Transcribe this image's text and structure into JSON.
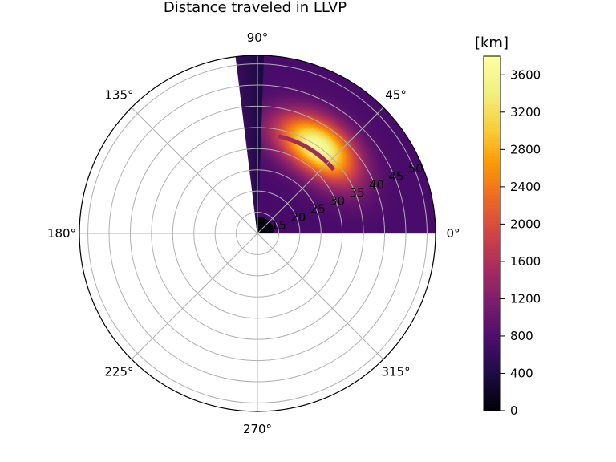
{
  "chart_data": {
    "type": "heatmap",
    "projection": "polar",
    "title": "Distance traveled in LLVP",
    "theta_range_deg": [
      0,
      97
    ],
    "theta_tick_labels": [
      "0°",
      "45°",
      "90°",
      "135°",
      "180°",
      "225°",
      "270°",
      "315°"
    ],
    "theta_tick_values_deg": [
      0,
      45,
      90,
      135,
      180,
      225,
      270,
      315
    ],
    "r_range": [
      10,
      52
    ],
    "r_tick_values": [
      15,
      20,
      25,
      30,
      35,
      40,
      45,
      50
    ],
    "r_tick_labels": [
      "15",
      "20",
      "25",
      "30",
      "35",
      "40",
      "45",
      "50"
    ],
    "r_label_angle_deg": 22.5,
    "grid": true,
    "colormap": "inferno",
    "colorbar": {
      "label": "[km]",
      "vmin": 0,
      "vmax": 3800,
      "ticks": [
        0,
        400,
        800,
        1200,
        1600,
        2000,
        2400,
        2800,
        3200,
        3600
      ],
      "tick_labels": [
        "0",
        "400",
        "800",
        "1200",
        "1600",
        "2000",
        "2400",
        "2800",
        "3200",
        "3600"
      ]
    },
    "field_description_values": {
      "background_km": 750,
      "peak_km": 3700,
      "peak_radius": 35,
      "peak_angle_deg": 55,
      "near_zero_radius_below": 14
    }
  },
  "colors": {
    "axis": "#000000",
    "grid": "#b0b0b0",
    "background": "#ffffff"
  }
}
